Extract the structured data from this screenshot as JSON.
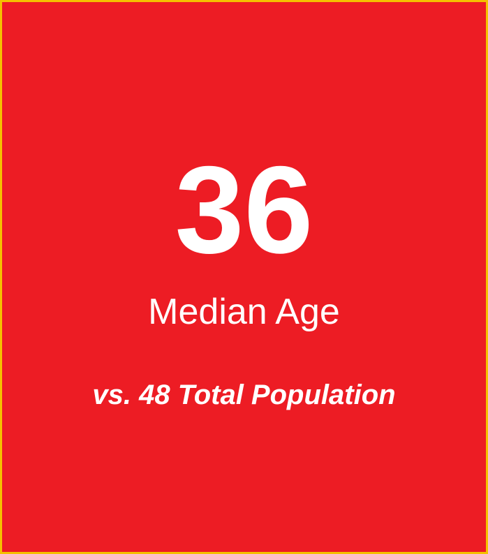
{
  "stat": {
    "value": "36",
    "label": "Median Age",
    "comparison": "vs. 48 Total Population"
  }
}
